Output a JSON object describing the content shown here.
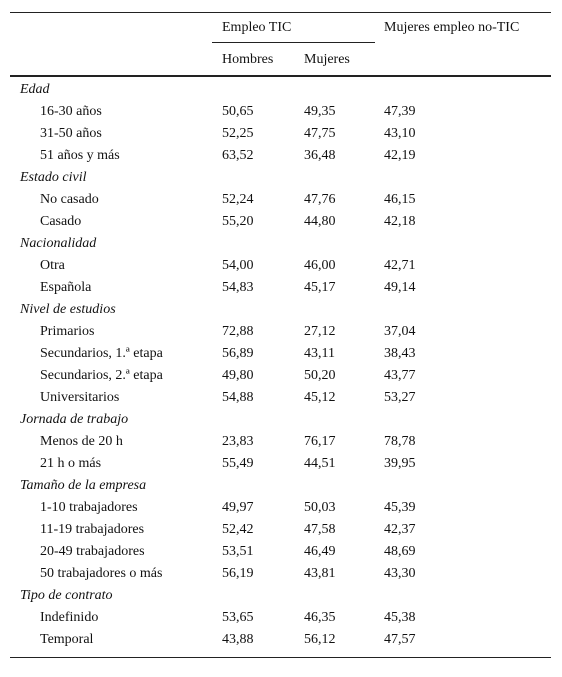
{
  "header": {
    "group_label": "Empleo TIC",
    "men_label": "Hombres",
    "women_label": "Mujeres",
    "other_label": "Mujeres empleo no-TIC"
  },
  "sections": [
    {
      "title": "Edad",
      "rows": [
        {
          "label": "16-30 años",
          "values": [
            "50,65",
            "49,35",
            "47,39"
          ]
        },
        {
          "label": "31-50 años",
          "values": [
            "52,25",
            "47,75",
            "43,10"
          ]
        },
        {
          "label": "51 años y más",
          "values": [
            "63,52",
            "36,48",
            "42,19"
          ]
        }
      ]
    },
    {
      "title": "Estado civil",
      "rows": [
        {
          "label": "No casado",
          "values": [
            "52,24",
            "47,76",
            "46,15"
          ]
        },
        {
          "label": "Casado",
          "values": [
            "55,20",
            "44,80",
            "42,18"
          ]
        }
      ]
    },
    {
      "title": "Nacionalidad",
      "rows": [
        {
          "label": "Otra",
          "values": [
            "54,00",
            "46,00",
            "42,71"
          ]
        },
        {
          "label": "Española",
          "values": [
            "54,83",
            "45,17",
            "49,14"
          ]
        }
      ]
    },
    {
      "title": "Nivel de estudios",
      "rows": [
        {
          "label": "Primarios",
          "values": [
            "72,88",
            "27,12",
            "37,04"
          ]
        },
        {
          "label": "Secundarios, 1.ª etapa",
          "values": [
            "56,89",
            "43,11",
            "38,43"
          ]
        },
        {
          "label": "Secundarios, 2.ª etapa",
          "values": [
            "49,80",
            "50,20",
            "43,77"
          ]
        },
        {
          "label": "Universitarios",
          "values": [
            "54,88",
            "45,12",
            "53,27"
          ]
        }
      ]
    },
    {
      "title": "Jornada de trabajo",
      "rows": [
        {
          "label": "Menos de 20 h",
          "values": [
            "23,83",
            "76,17",
            "78,78"
          ]
        },
        {
          "label": "21 h o más",
          "values": [
            "55,49",
            "44,51",
            "39,95"
          ]
        }
      ]
    },
    {
      "title": "Tamaño de la empresa",
      "rows": [
        {
          "label": "1-10 trabajadores",
          "values": [
            "49,97",
            "50,03",
            "45,39"
          ]
        },
        {
          "label": "11-19 trabajadores",
          "values": [
            "52,42",
            "47,58",
            "42,37"
          ]
        },
        {
          "label": "20-49 trabajadores",
          "values": [
            "53,51",
            "46,49",
            "48,69"
          ]
        },
        {
          "label": "50 trabajadores o más",
          "values": [
            "56,19",
            "43,81",
            "43,30"
          ]
        }
      ]
    },
    {
      "title": "Tipo de contrato",
      "rows": [
        {
          "label": "Indefinido",
          "values": [
            "53,65",
            "46,35",
            "45,38"
          ]
        },
        {
          "label": "Temporal",
          "values": [
            "43,88",
            "56,12",
            "47,57"
          ]
        }
      ]
    }
  ]
}
